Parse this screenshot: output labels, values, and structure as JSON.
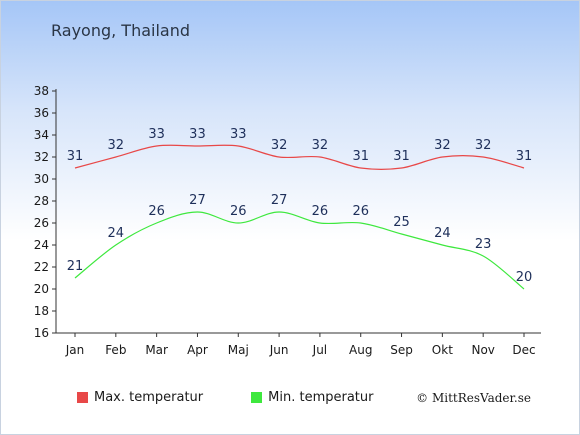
{
  "location": "Rayong, Thailand",
  "credit": "© MittResVader.se",
  "colors": {
    "max": "#e84848",
    "min": "#3ee83e",
    "axis": "#333333"
  },
  "chart_data": {
    "type": "line",
    "title": "Rayong, Thailand",
    "categories": [
      "Jan",
      "Feb",
      "Mar",
      "Apr",
      "Maj",
      "Jun",
      "Jul",
      "Aug",
      "Sep",
      "Okt",
      "Nov",
      "Dec"
    ],
    "series": [
      {
        "name": "Max. temperatur",
        "values": [
          31,
          32,
          33,
          33,
          33,
          32,
          32,
          31,
          31,
          32,
          32,
          31
        ]
      },
      {
        "name": "Min. temperatur",
        "values": [
          21,
          24,
          26,
          27,
          26,
          27,
          26,
          26,
          25,
          24,
          23,
          20
        ]
      }
    ],
    "ylim": [
      16,
      38
    ],
    "yticks": [
      16,
      18,
      20,
      22,
      24,
      26,
      28,
      30,
      32,
      34,
      36,
      38
    ],
    "legend_position": "bottom",
    "grid": false
  }
}
